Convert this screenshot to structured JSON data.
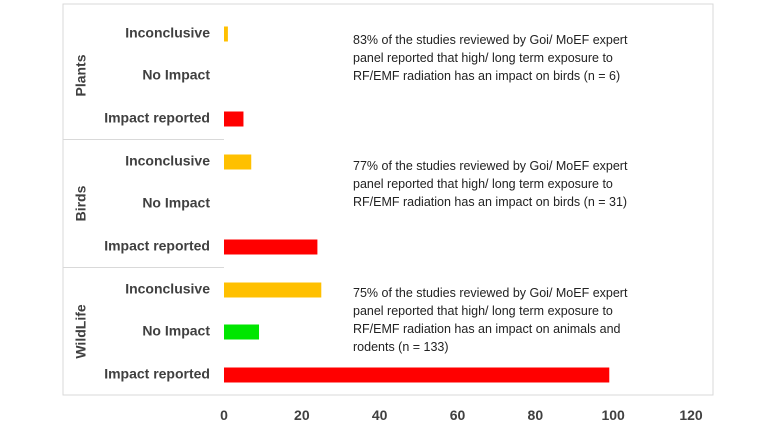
{
  "chart_data": {
    "type": "bar",
    "orientation": "horizontal",
    "groups": [
      {
        "name": "Plants",
        "categories": [
          "Inconclusive",
          "No Impact",
          "Impact reported"
        ],
        "values": [
          1,
          0,
          5
        ],
        "colors": [
          "#FFC000",
          "#00E600",
          "#FF0000"
        ],
        "annotation": [
          "83% of the studies reviewed by Goi/ MoEF expert",
          "panel reported that high/ long term exposure to",
          "RF/EMF radiation has an impact on birds (n = 6)"
        ]
      },
      {
        "name": "Birds",
        "categories": [
          "Inconclusive",
          "No Impact",
          "Impact reported"
        ],
        "values": [
          7,
          0,
          24
        ],
        "colors": [
          "#FFC000",
          "#00E600",
          "#FF0000"
        ],
        "annotation": [
          "77% of the studies reviewed by Goi/ MoEF expert",
          "panel reported that high/ long term exposure to",
          "RF/EMF radiation has an impact on birds (n = 31)"
        ]
      },
      {
        "name": "WildLife",
        "categories": [
          "Inconclusive",
          "No Impact",
          "Impact reported"
        ],
        "values": [
          25,
          9,
          99
        ],
        "colors": [
          "#FFC000",
          "#00E600",
          "#FF0000"
        ],
        "annotation": [
          "75% of the studies reviewed by Goi/ MoEF expert",
          "panel reported that high/ long term exposure to",
          "RF/EMF radiation has an impact on animals and",
          "rodents (n = 133)"
        ]
      }
    ],
    "x_ticks": [
      0,
      20,
      40,
      60,
      80,
      100,
      120
    ],
    "xlim": [
      0,
      120
    ],
    "grid": false,
    "legend": "none"
  }
}
